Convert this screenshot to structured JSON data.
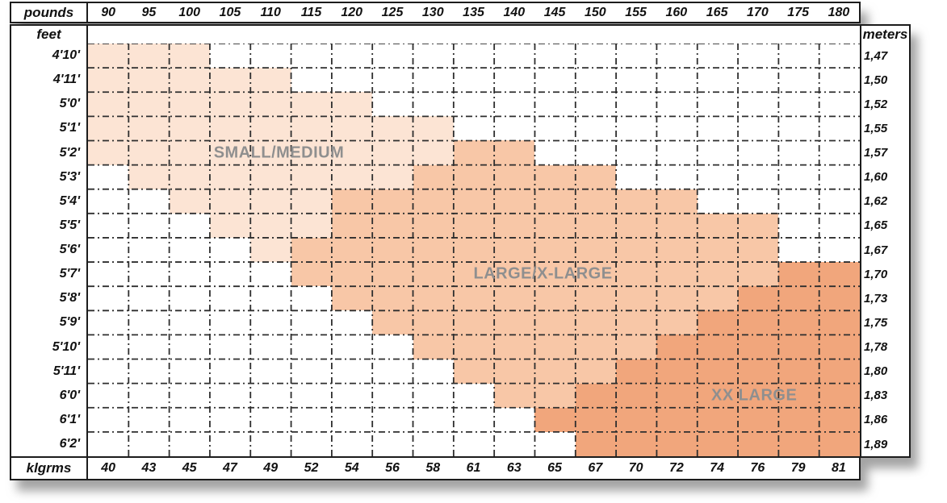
{
  "chart_data": {
    "type": "heatmap",
    "description": "Size chart mapping body height (feet / meters) and weight (pounds / kilograms) to garment size regions",
    "unit_labels": {
      "pounds": "pounds",
      "feet": "feet",
      "meters": "meters",
      "klgrms": "klgrms"
    },
    "pounds": [
      "90",
      "95",
      "100",
      "105",
      "110",
      "115",
      "120",
      "125",
      "130",
      "135",
      "140",
      "145",
      "150",
      "155",
      "160",
      "165",
      "170",
      "175",
      "180"
    ],
    "klgrms": [
      "40",
      "43",
      "45",
      "47",
      "49",
      "52",
      "54",
      "56",
      "58",
      "61",
      "63",
      "65",
      "67",
      "70",
      "72",
      "74",
      "76",
      "79",
      "81"
    ],
    "rows": [
      {
        "feet": "4'10'",
        "meters": "1,47",
        "cells": "LLL................"
      },
      {
        "feet": "4'11'",
        "meters": "1,50",
        "cells": "LLLLL.............."
      },
      {
        "feet": "5'0'",
        "meters": "1,52",
        "cells": "LLLLLLL............"
      },
      {
        "feet": "5'1'",
        "meters": "1,55",
        "cells": "LLLLLLLLL.........."
      },
      {
        "feet": "5'2'",
        "meters": "1,57",
        "cells": "LLLLLLLLLMM........"
      },
      {
        "feet": "5'3'",
        "meters": "1,60",
        "cells": ".LLLLLLLMMMMM......"
      },
      {
        "feet": "5'4'",
        "meters": "1,62",
        "cells": "..LLLLMMMMMMMMM...."
      },
      {
        "feet": "5'5'",
        "meters": "1,65",
        "cells": "...LLLMMMMMMMMMMM.."
      },
      {
        "feet": "5'6'",
        "meters": "1,67",
        "cells": "....LMMMMMMMMMMMM.."
      },
      {
        "feet": "5'7'",
        "meters": "1,70",
        "cells": ".....MMMMMMMMMMMMDD"
      },
      {
        "feet": "5'8'",
        "meters": "1,73",
        "cells": "......MMMMMMMMMMDDD"
      },
      {
        "feet": "5'9'",
        "meters": "1,75",
        "cells": ".......MMMMMMMMDDDD"
      },
      {
        "feet": "5'10'",
        "meters": "1,78",
        "cells": "........MMMMMMDDDDD"
      },
      {
        "feet": "5'11'",
        "meters": "1,80",
        "cells": ".........MMMMDDDDDD"
      },
      {
        "feet": "6'0'",
        "meters": "1,83",
        "cells": "..........MMDDDDDDD"
      },
      {
        "feet": "6'1'",
        "meters": "1,86",
        "cells": "...........DDDDDDDD"
      },
      {
        "feet": "6'2'",
        "meters": "1,89",
        "cells": "............DDDDDDD"
      }
    ],
    "cell_legend": {
      "L": "SMALL/MEDIUM",
      "M": "LARGE/X-LARGE",
      "D": "XX LARGE",
      ".": "unshaded"
    },
    "regions": [
      {
        "id": "small-medium",
        "label": "SMALL/MEDIUM",
        "col_center": 4.7,
        "row_center": 4.5
      },
      {
        "id": "large-x-large",
        "label": "LARGE/X-LARGE",
        "col_center": 11.2,
        "row_center": 9.5
      },
      {
        "id": "xx-large",
        "label": "XX LARGE",
        "col_center": 16.4,
        "row_center": 14.5
      }
    ],
    "colors": {
      "small_medium": "#fce4d4",
      "large_x_large": "#f8c7a7",
      "xx_large": "#f1a67c",
      "grid_dash_line": "#2e2e2e",
      "solid_border": "#1c1c1c",
      "region_label_text": "#8f8f8f"
    }
  }
}
